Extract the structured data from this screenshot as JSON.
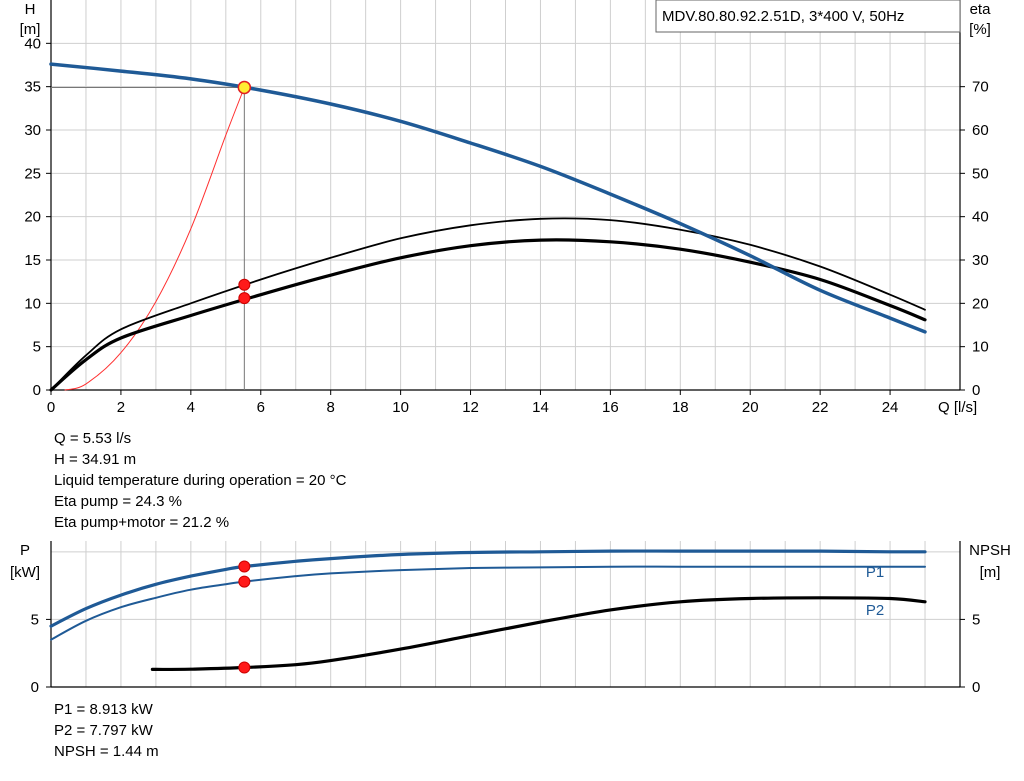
{
  "chart_data": [
    {
      "type": "line",
      "title": "MDV.80.80.92.2.51D, 3*400 V, 50Hz",
      "xlabel": "Q [l/s]",
      "ylabel_left": [
        "H",
        "[m]"
      ],
      "ylabel_right": [
        "eta",
        "[%]"
      ],
      "xlim": [
        0,
        26
      ],
      "ylim": [
        0,
        45
      ],
      "ylim_right": [
        0,
        90
      ],
      "x_ticks": [
        "0",
        "2",
        "4",
        "6",
        "8",
        "10",
        "12",
        "14",
        "16",
        "18",
        "20",
        "22",
        "24"
      ],
      "y_ticks": [
        "0",
        "5",
        "10",
        "15",
        "20",
        "25",
        "30",
        "35",
        "40"
      ],
      "y_ticks_right": [
        "0",
        "10",
        "20",
        "30",
        "40",
        "50",
        "60",
        "70"
      ],
      "grid": true,
      "series": [
        {
          "axis": "left",
          "color": "#1f5a96",
          "width": 3.5,
          "x": [
            0,
            2,
            4,
            6,
            8,
            10,
            12,
            14,
            16,
            18,
            20,
            22,
            24,
            25
          ],
          "values": [
            37.6,
            36.8,
            35.9,
            34.6,
            33.0,
            31.0,
            28.5,
            25.8,
            22.6,
            19.2,
            15.5,
            11.5,
            8.3,
            6.7
          ]
        },
        {
          "axis": "right",
          "color": "#000000",
          "width": 1.8,
          "x": [
            0,
            1,
            2,
            4,
            6,
            8,
            10,
            12,
            14,
            16,
            18,
            20,
            22,
            24,
            25
          ],
          "values": [
            0,
            8,
            14,
            20,
            25.5,
            30.5,
            35,
            38,
            39.5,
            39.2,
            37,
            33.5,
            28.5,
            22,
            18.5
          ]
        },
        {
          "axis": "right",
          "color": "#000000",
          "width": 3.2,
          "x": [
            0,
            1,
            2,
            4,
            6,
            8,
            10,
            12,
            14,
            16,
            18,
            20,
            22,
            24,
            25
          ],
          "values": [
            0,
            7,
            12,
            17.2,
            22,
            26.5,
            30.5,
            33.3,
            34.6,
            34.2,
            32.5,
            29.5,
            25.5,
            19.5,
            16.2
          ]
        },
        {
          "axis": "left",
          "color": "#ff3030",
          "width": 1,
          "x": [
            0.4,
            1,
            2,
            3,
            4,
            5,
            5.53
          ],
          "values": [
            0,
            0.7,
            4.3,
            10.2,
            18.6,
            29.4,
            34.9
          ]
        }
      ],
      "operating_point": {
        "x": 5.53,
        "y": 34.91,
        "eta_pump_points": [
          24.3,
          21.2
        ]
      },
      "annotations": [
        "Q = 5.53 l/s",
        "H = 34.91 m",
        "Liquid temperature during operation = 20 °C",
        "Eta pump = 24.3 %",
        "Eta pump+motor = 21.2 %"
      ]
    },
    {
      "type": "line",
      "xlim": [
        0,
        26
      ],
      "ylim": [
        0,
        10.8
      ],
      "ylim_right": [
        0,
        10.8
      ],
      "ylabel_left": [
        "P",
        "[kW]"
      ],
      "ylabel_right": [
        "NPSH",
        "[m]"
      ],
      "y_ticks": [
        "0",
        "5"
      ],
      "y_ticks_right": [
        "0",
        "5"
      ],
      "grid": true,
      "series": [
        {
          "name": "P1",
          "axis": "left",
          "color": "#1f5a96",
          "width": 3.2,
          "x": [
            0,
            1,
            2,
            3,
            4,
            5,
            5.53,
            7,
            8,
            10,
            12,
            14,
            16,
            18,
            20,
            22,
            24,
            25
          ],
          "values": [
            4.5,
            5.8,
            6.8,
            7.6,
            8.2,
            8.7,
            8.913,
            9.3,
            9.5,
            9.8,
            9.95,
            10.0,
            10.05,
            10.05,
            10.05,
            10.05,
            10.0,
            10.0
          ]
        },
        {
          "name": "P2",
          "axis": "left",
          "color": "#1f5a96",
          "width": 2,
          "x": [
            0,
            1,
            2,
            3,
            4,
            5,
            5.53,
            7,
            8,
            10,
            12,
            14,
            16,
            18,
            20,
            22,
            24,
            25
          ],
          "values": [
            3.5,
            4.9,
            5.9,
            6.6,
            7.2,
            7.6,
            7.797,
            8.2,
            8.4,
            8.65,
            8.8,
            8.85,
            8.9,
            8.9,
            8.9,
            8.9,
            8.9,
            8.9
          ]
        },
        {
          "name": "NPSH",
          "axis": "right",
          "color": "#000000",
          "width": 3.2,
          "x": [
            2.9,
            4,
            5.53,
            7,
            8,
            10,
            12,
            14,
            16,
            18,
            20,
            22,
            24,
            25
          ],
          "values": [
            1.3,
            1.32,
            1.44,
            1.65,
            1.95,
            2.8,
            3.8,
            4.8,
            5.7,
            6.3,
            6.55,
            6.6,
            6.55,
            6.3
          ]
        }
      ],
      "operating_point": {
        "x": 5.53,
        "values": [
          8.913,
          7.797,
          1.44
        ]
      },
      "annotations": [
        "P1 = 8.913 kW",
        "P2 = 7.797 kW",
        "NPSH = 1.44 m"
      ]
    }
  ]
}
